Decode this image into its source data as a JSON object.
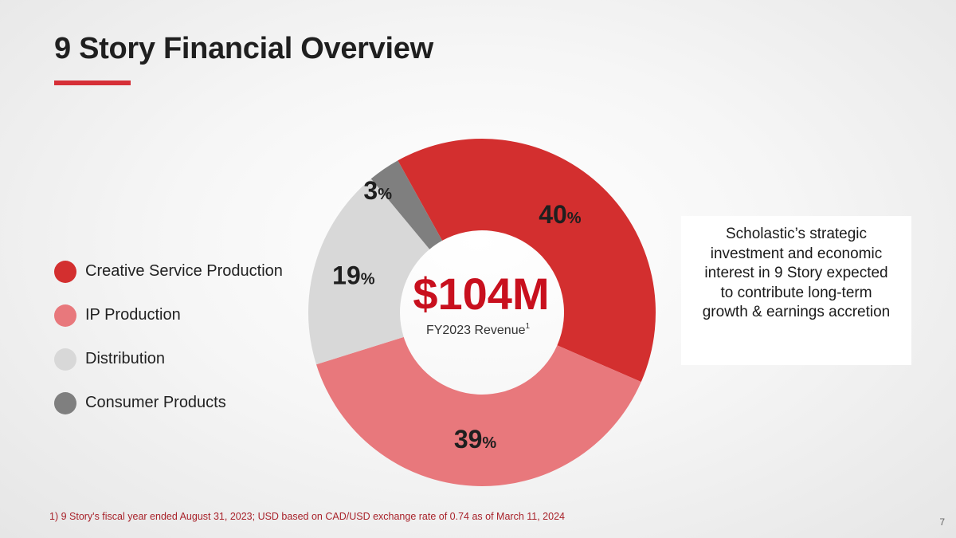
{
  "slide": {
    "title": "9 Story Financial Overview",
    "accent_color": "#d62f37",
    "page_number": "7",
    "footnote": "1) 9 Story's fiscal year ended August 31, 2023; USD based on CAD/USD exchange rate of 0.74 as of March 11, 2024"
  },
  "callout": {
    "text": "Scholastic’s strategic investment and economic interest in 9 Story expected to contribute long-term growth & earnings accretion"
  },
  "chart_data": {
    "type": "pie",
    "variant": "donut",
    "title": "",
    "center_value": "$104M",
    "center_label": "FY2023 Revenue",
    "center_label_sup": "1",
    "categories": [
      "Creative Service Production",
      "IP Production",
      "Distribution",
      "Consumer Products"
    ],
    "values": [
      40,
      39,
      19,
      3
    ],
    "value_suffix": "%",
    "colors": [
      "#d32f2f",
      "#e8787c",
      "#d8d8d8",
      "#7f7f7f"
    ],
    "legend_position": "left"
  }
}
